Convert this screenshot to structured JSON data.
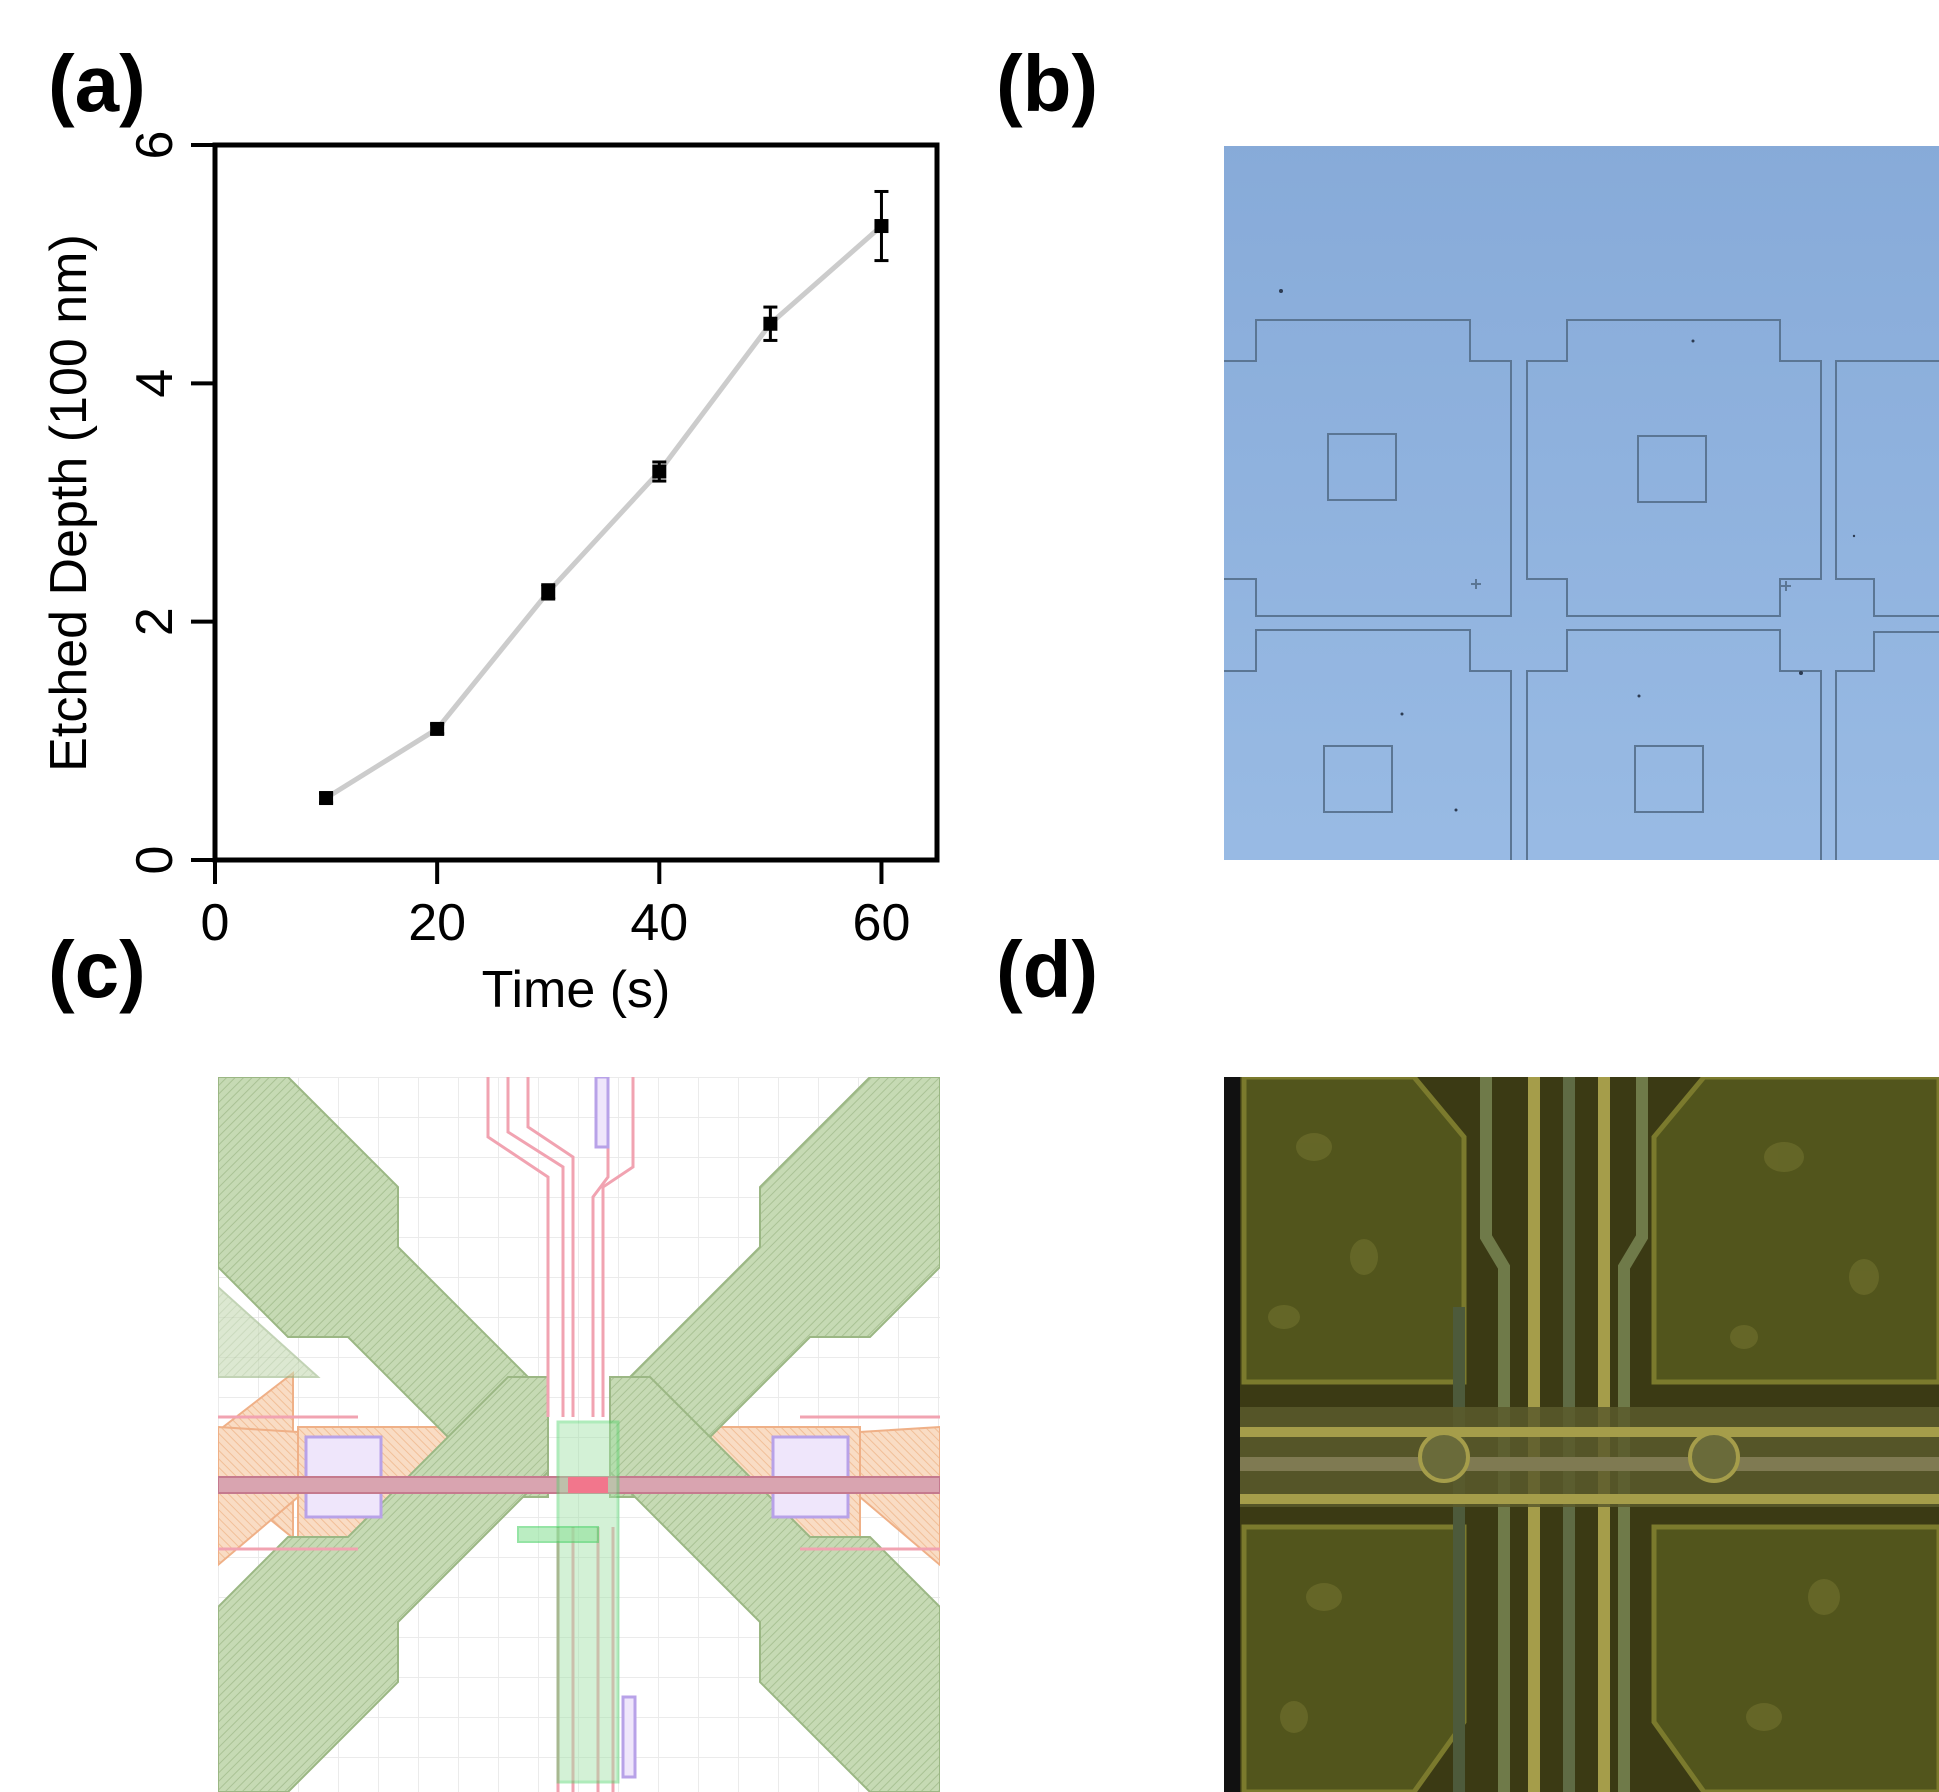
{
  "panels": {
    "a": "(a)",
    "b": "(b)",
    "c": "(c)",
    "d": "(d)"
  },
  "chart_data": {
    "type": "line",
    "title": "",
    "xlabel": "Time (s)",
    "ylabel": "Etched Depth (100 nm)",
    "xlim": [
      0,
      65
    ],
    "ylim": [
      0,
      6
    ],
    "xticks": [
      0,
      20,
      40,
      60
    ],
    "yticks": [
      0,
      2,
      4,
      6
    ],
    "grid": false,
    "line_color": "#cccccc",
    "marker_color": "#000000",
    "series": [
      {
        "x": [
          10,
          20,
          30,
          40,
          50,
          60
        ],
        "y": [
          0.52,
          1.1,
          2.25,
          3.26,
          4.5,
          5.32
        ],
        "yerr": [
          0.04,
          0.04,
          0.06,
          0.08,
          0.14,
          0.29
        ]
      }
    ]
  },
  "colors": {
    "b_background": "#8fb2de",
    "b_lines": "#5b7694",
    "c_green": "#b7cfa2",
    "c_orange": "#f6c9a6",
    "c_pink": "#f0a7b3",
    "c_violet": "#b8a2e8",
    "d_background": "#3b3a14",
    "d_pad": "#52551c",
    "d_trace": "#a59d4a"
  }
}
